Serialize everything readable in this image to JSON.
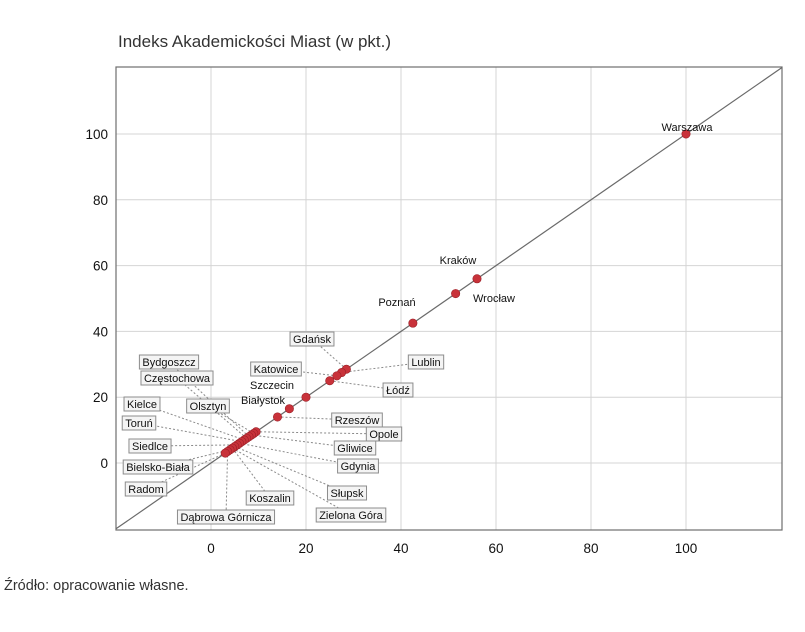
{
  "title": "Indeks Akademickości Miast (w pkt.)",
  "source": "Źródło: opracowanie własne.",
  "chart_data": {
    "type": "scatter",
    "title": "Indeks Akademickości Miast (w pkt.)",
    "xlabel": "",
    "ylabel": "",
    "xlim": [
      -20,
      120
    ],
    "ylim": [
      -20,
      120
    ],
    "xticks": [
      0,
      20,
      40,
      60,
      80,
      100
    ],
    "yticks": [
      0,
      20,
      40,
      60,
      80,
      100
    ],
    "grid": true,
    "diagonal_line": true,
    "point_color": "#c8323a",
    "line_color": "#6a6a6a",
    "grid_color": "#d4d4d4",
    "points": [
      {
        "name": "Warszawa",
        "x": 100,
        "y": 100,
        "boxed": false
      },
      {
        "name": "Kraków",
        "x": 56,
        "y": 56,
        "boxed": false
      },
      {
        "name": "Wrocław",
        "x": 51.5,
        "y": 51.5,
        "boxed": false
      },
      {
        "name": "Poznań",
        "x": 42.5,
        "y": 42.5,
        "boxed": false
      },
      {
        "name": "Gdańsk",
        "x": 28.5,
        "y": 28.5,
        "boxed": true
      },
      {
        "name": "Lublin",
        "x": 27.5,
        "y": 27.5,
        "boxed": true
      },
      {
        "name": "Katowice",
        "x": 26.5,
        "y": 26.5,
        "boxed": true
      },
      {
        "name": "Łódź",
        "x": 25,
        "y": 25,
        "boxed": true
      },
      {
        "name": "Szczecin",
        "x": 20,
        "y": 20,
        "boxed": false
      },
      {
        "name": "Białystok",
        "x": 16.5,
        "y": 16.5,
        "boxed": false
      },
      {
        "name": "Rzeszów",
        "x": 14,
        "y": 14,
        "boxed": true
      },
      {
        "name": "Opole",
        "x": 9.5,
        "y": 9.5,
        "boxed": true
      },
      {
        "name": "Olsztyn",
        "x": 9,
        "y": 9,
        "boxed": true
      },
      {
        "name": "Gliwice",
        "x": 8.5,
        "y": 8.5,
        "boxed": true
      },
      {
        "name": "Bydgoszcz",
        "x": 8,
        "y": 8,
        "boxed": true
      },
      {
        "name": "Częstochowa",
        "x": 7.5,
        "y": 7.5,
        "boxed": true
      },
      {
        "name": "Kielce",
        "x": 7,
        "y": 7,
        "boxed": true
      },
      {
        "name": "Toruń",
        "x": 6.5,
        "y": 6.5,
        "boxed": true
      },
      {
        "name": "Gdynia",
        "x": 6,
        "y": 6,
        "boxed": true
      },
      {
        "name": "Siedlce",
        "x": 5.5,
        "y": 5.5,
        "boxed": true
      },
      {
        "name": "Słupsk",
        "x": 5,
        "y": 5,
        "boxed": true
      },
      {
        "name": "Koszalin",
        "x": 4.5,
        "y": 4.5,
        "boxed": true
      },
      {
        "name": "Zielona Góra",
        "x": 4.5,
        "y": 4.5,
        "boxed": true
      },
      {
        "name": "Bielsko-Biała",
        "x": 4,
        "y": 4,
        "boxed": true
      },
      {
        "name": "Dąbrowa Górnicza",
        "x": 3.5,
        "y": 3.5,
        "boxed": true
      },
      {
        "name": "Radom",
        "x": 3,
        "y": 3,
        "boxed": true
      }
    ]
  }
}
